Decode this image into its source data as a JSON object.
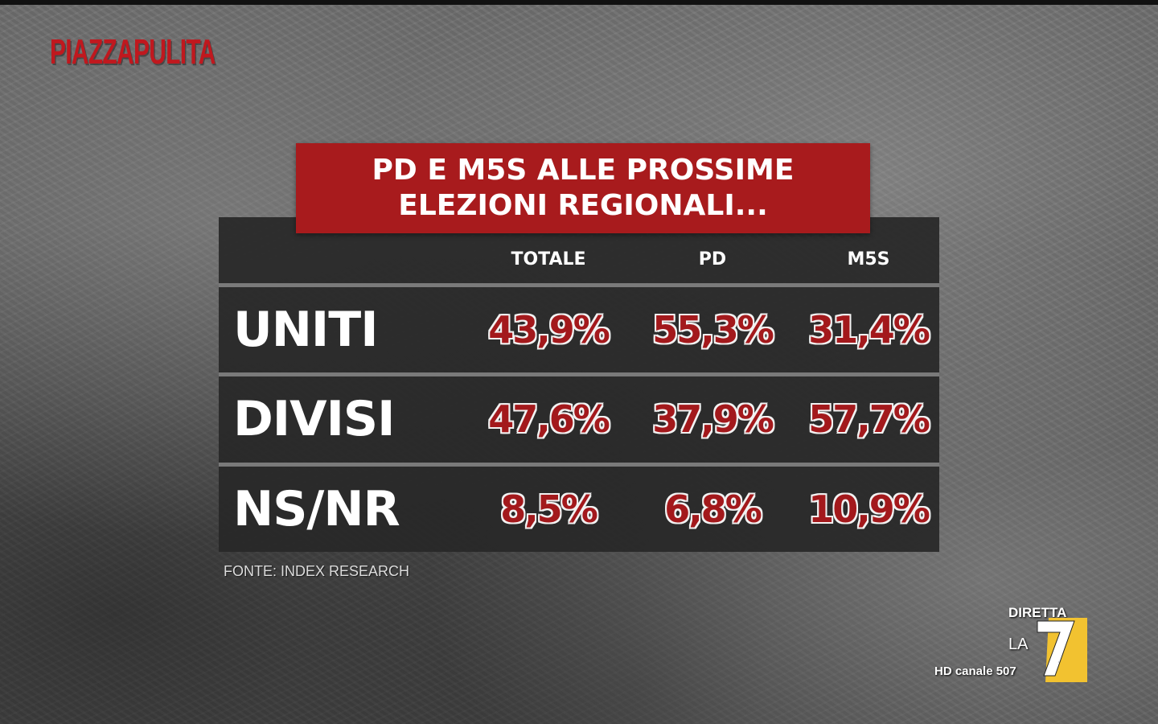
{
  "brand": {
    "logo_text": "PIAZZAPULITA"
  },
  "chart_data": {
    "type": "table",
    "title_lines": [
      "PD E M5S ALLE PROSSIME",
      "ELEZIONI REGIONALI..."
    ],
    "columns": [
      "TOTALE",
      "PD",
      "M5S"
    ],
    "rows": [
      {
        "label": "UNITI",
        "display": [
          "43,9%",
          "55,3%",
          "31,4%"
        ],
        "values": [
          43.9,
          55.3,
          31.4
        ]
      },
      {
        "label": "DIVISI",
        "display": [
          "47,6%",
          "37,9%",
          "57,7%"
        ],
        "values": [
          47.6,
          37.9,
          57.7
        ]
      },
      {
        "label": "NS/NR",
        "display": [
          "8,5%",
          "6,8%",
          "10,9%"
        ],
        "values": [
          8.5,
          6.8,
          10.9
        ]
      }
    ],
    "unit": "%",
    "source": "FONTE: INDEX RESEARCH"
  },
  "broadcaster": {
    "live_label": "DIRETTA",
    "channel_prefix": "LA",
    "channel_number": "7",
    "hd_label": "HD canale 507"
  },
  "colors": {
    "title_bg": "#a81b1d",
    "value_red": "#a3191c",
    "logo_red": "#c0181e",
    "la7_yellow": "#f2c230"
  }
}
